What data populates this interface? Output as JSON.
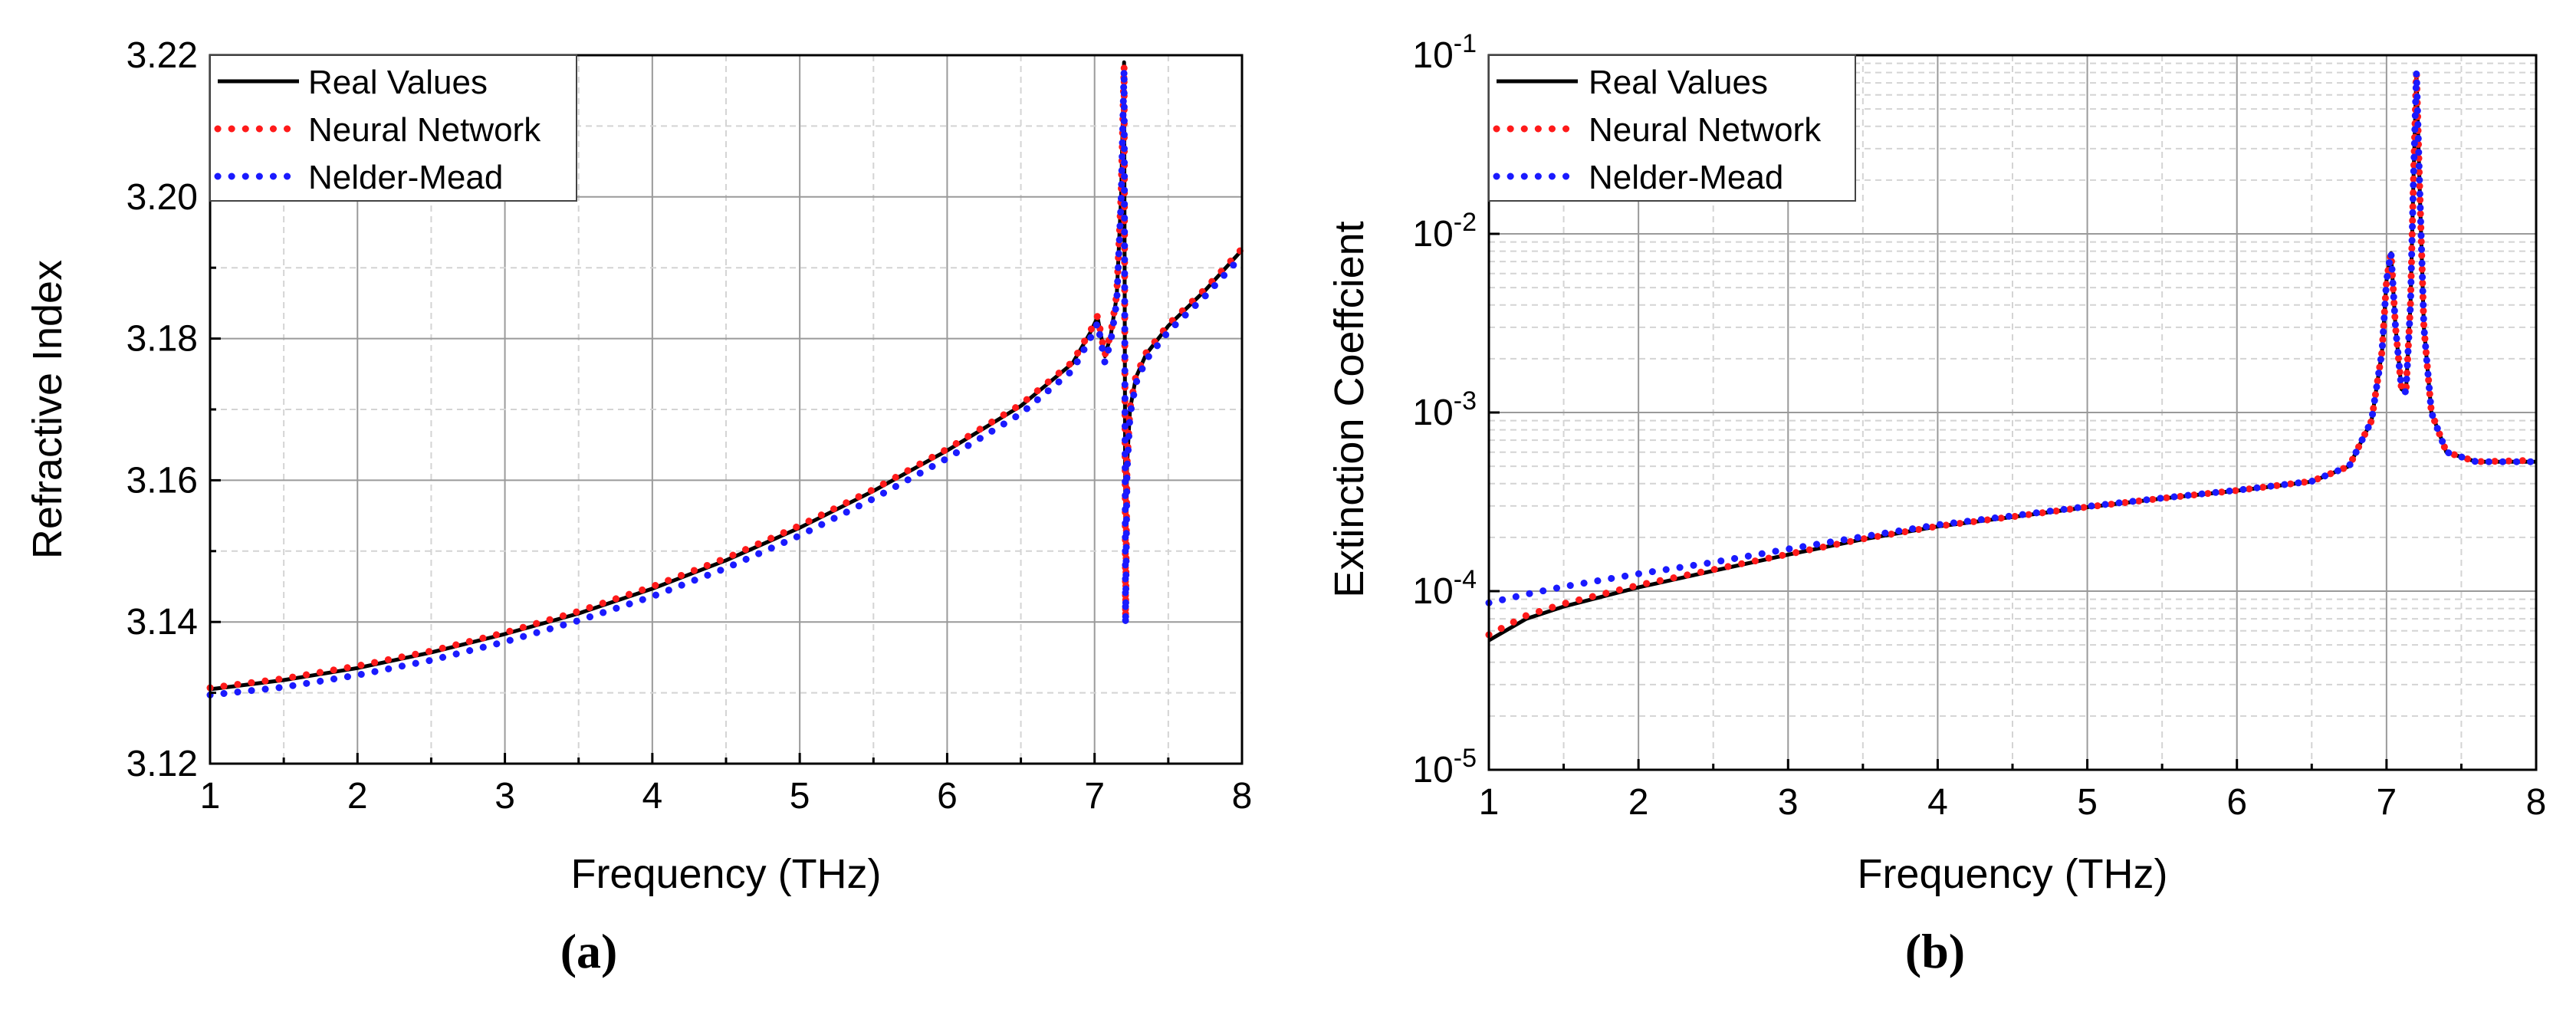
{
  "figure": {
    "panels": [
      "(a)",
      "(b)"
    ]
  },
  "colors": {
    "real": "#000000",
    "neural": "#ff1a1a",
    "nelder": "#1a1aff",
    "grid_major": "#9a9a9a",
    "grid_minor": "#d4d4d4"
  },
  "chart_data": [
    {
      "type": "line",
      "panel": "(a)",
      "title": "",
      "xlabel": "Frequency (THz)",
      "ylabel": "Refractive Index",
      "xlim": [
        1,
        8
      ],
      "ylim": [
        3.12,
        3.22
      ],
      "x_ticks": [
        "1",
        "2",
        "3",
        "4",
        "5",
        "6",
        "7",
        "8"
      ],
      "y_ticks": [
        "3.12",
        "3.14",
        "3.16",
        "3.18",
        "3.20",
        "3.22"
      ],
      "y_tick_values": [
        3.12,
        3.14,
        3.16,
        3.18,
        3.2,
        3.22
      ],
      "grid": true,
      "legend": "top-left",
      "series": [
        {
          "name": "Real Values",
          "style": "solid",
          "color": "#000000",
          "x": [
            1,
            1.5,
            2,
            2.5,
            3,
            3.5,
            4,
            4.5,
            5,
            5.5,
            6,
            6.5,
            6.85,
            6.97,
            7.02,
            7.07,
            7.11,
            7.15,
            7.18,
            7.2,
            7.21,
            7.22,
            7.24,
            7.28,
            7.35,
            7.5,
            7.75,
            8
          ],
          "y": [
            3.1305,
            3.1318,
            3.1335,
            3.1357,
            3.1383,
            3.1412,
            3.1447,
            3.1487,
            3.1533,
            3.1585,
            3.1642,
            3.1705,
            3.1765,
            3.1808,
            3.183,
            3.1775,
            3.1805,
            3.186,
            3.2,
            3.219,
            3.14,
            3.162,
            3.17,
            3.1745,
            3.1778,
            3.1818,
            3.1868,
            3.1925
          ]
        },
        {
          "name": "Neural Network",
          "style": "dotted",
          "color": "#ff1a1a",
          "x": [
            1,
            1.5,
            2,
            2.5,
            3,
            3.5,
            4,
            4.5,
            5,
            5.5,
            6,
            6.5,
            6.85,
            6.97,
            7.02,
            7.07,
            7.11,
            7.15,
            7.18,
            7.2,
            7.21,
            7.22,
            7.24,
            7.28,
            7.35,
            7.5,
            7.75,
            8
          ],
          "y": [
            3.1307,
            3.132,
            3.1338,
            3.1359,
            3.1385,
            3.1415,
            3.145,
            3.149,
            3.1536,
            3.1587,
            3.1644,
            3.1707,
            3.1767,
            3.181,
            3.1832,
            3.1777,
            3.1807,
            3.1862,
            3.2002,
            3.2185,
            3.1405,
            3.1622,
            3.1702,
            3.1747,
            3.178,
            3.182,
            3.187,
            3.1927
          ]
        },
        {
          "name": "Nelder-Mead",
          "style": "dotted",
          "color": "#1a1aff",
          "x": [
            1,
            1.5,
            2,
            2.5,
            3,
            3.5,
            4,
            4.5,
            5,
            5.5,
            6,
            6.5,
            6.85,
            6.97,
            7.02,
            7.07,
            7.11,
            7.15,
            7.18,
            7.2,
            7.21,
            7.22,
            7.24,
            7.28,
            7.35,
            7.5,
            7.75,
            8
          ],
          "y": [
            3.1297,
            3.1308,
            3.1325,
            3.1346,
            3.1372,
            3.1402,
            3.1436,
            3.1476,
            3.1522,
            3.1574,
            3.1631,
            3.1694,
            3.1755,
            3.18,
            3.1822,
            3.1766,
            3.1797,
            3.1852,
            3.1993,
            3.218,
            3.1395,
            3.1612,
            3.1692,
            3.1737,
            3.177,
            3.181,
            3.186,
            3.1917
          ]
        }
      ]
    },
    {
      "type": "line",
      "panel": "(b)",
      "title": "",
      "xlabel": "Frequency (THz)",
      "ylabel": "Extinction Coeffcient",
      "xlim": [
        1,
        8
      ],
      "ylim": [
        1e-05,
        0.1
      ],
      "yscale": "log",
      "x_ticks": [
        "1",
        "2",
        "3",
        "4",
        "5",
        "6",
        "7",
        "8"
      ],
      "y_ticks_base": [
        "10",
        "10",
        "10",
        "10",
        "10"
      ],
      "y_ticks_exp": [
        "-5",
        "-4",
        "-3",
        "-2",
        "-1"
      ],
      "y_tick_values": [
        1e-05,
        0.0001,
        0.001,
        0.01,
        0.1
      ],
      "grid": true,
      "legend": "top-left",
      "series": [
        {
          "name": "Real Values",
          "style": "solid",
          "color": "#000000",
          "x": [
            1,
            1.25,
            1.5,
            2,
            2.5,
            3,
            3.5,
            4,
            4.5,
            5,
            5.5,
            6,
            6.5,
            6.75,
            6.9,
            6.97,
            7.0,
            7.03,
            7.06,
            7.1,
            7.13,
            7.16,
            7.18,
            7.2,
            7.22,
            7.25,
            7.3,
            7.4,
            7.6,
            8
          ],
          "y": [
            5.3e-05,
            7e-05,
            8.2e-05,
            0.000105,
            0.00013,
            0.00016,
            0.000195,
            0.00023,
            0.00026,
            0.000295,
            0.00033,
            0.000365,
            0.00041,
            0.0005,
            0.0009,
            0.0022,
            0.0055,
            0.0078,
            0.003,
            0.00135,
            0.0013,
            0.004,
            0.02,
            0.08,
            0.02,
            0.003,
            0.001,
            0.0006,
            0.00053,
            0.00053
          ]
        },
        {
          "name": "Neural Network",
          "style": "dotted",
          "color": "#ff1a1a",
          "x": [
            1,
            1.25,
            1.5,
            2,
            2.5,
            3,
            3.5,
            4,
            4.5,
            5,
            5.5,
            6,
            6.5,
            6.75,
            6.9,
            6.97,
            7.0,
            7.03,
            7.06,
            7.1,
            7.13,
            7.16,
            7.18,
            7.2,
            7.22,
            7.25,
            7.3,
            7.4,
            7.6,
            8
          ],
          "y": [
            5.7e-05,
            7.3e-05,
            8.5e-05,
            0.000108,
            0.000132,
            0.000161,
            0.000196,
            0.000231,
            0.000261,
            0.000296,
            0.000331,
            0.000366,
            0.000412,
            0.0005,
            0.0009,
            0.0022,
            0.0055,
            0.0079,
            0.003,
            0.00135,
            0.0013,
            0.004,
            0.02,
            0.081,
            0.02,
            0.003,
            0.001,
            0.0006,
            0.00053,
            0.00054
          ]
        },
        {
          "name": "Nelder-Mead",
          "style": "dotted",
          "color": "#1a1aff",
          "x": [
            1,
            1.25,
            1.5,
            2,
            2.5,
            3,
            3.5,
            4,
            4.5,
            5,
            5.5,
            6,
            6.5,
            6.75,
            6.9,
            6.97,
            7.0,
            7.03,
            7.06,
            7.1,
            7.13,
            7.16,
            7.18,
            7.2,
            7.22,
            7.25,
            7.3,
            7.4,
            7.6,
            8
          ],
          "y": [
            8.6e-05,
            9.6e-05,
            0.000106,
            0.000125,
            0.000145,
            0.000172,
            0.000202,
            0.000235,
            0.000264,
            0.000298,
            0.000332,
            0.000367,
            0.000412,
            0.0005,
            0.0009,
            0.0022,
            0.0055,
            0.0079,
            0.003,
            0.00135,
            0.0013,
            0.004,
            0.02,
            0.081,
            0.02,
            0.003,
            0.001,
            0.0006,
            0.00053,
            0.00053
          ]
        }
      ]
    }
  ]
}
